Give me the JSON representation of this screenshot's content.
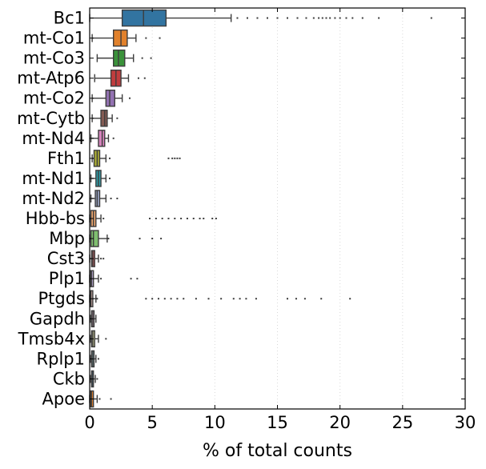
{
  "chart_data": {
    "type": "boxplot",
    "orientation": "horizontal",
    "xlabel": "% of total counts",
    "xlim": [
      0,
      30
    ],
    "xticks": [
      0,
      5,
      10,
      15,
      20,
      25,
      30
    ],
    "grid": "vertical-dotted",
    "legend": "none",
    "series": [
      {
        "name": "Bc1",
        "color": "#3274a1",
        "whisker_low": 0,
        "q1": 2.6,
        "median": 4.3,
        "q3": 6.1,
        "whisker_high": 11.3,
        "outliers": [
          11.8,
          12.6,
          13.4,
          14.2,
          15.0,
          15.8,
          16.6,
          17.3,
          17.9,
          18.3,
          18.6,
          18.9,
          19.2,
          19.6,
          20.0,
          20.5,
          21.0,
          21.8,
          23.1,
          27.3
        ]
      },
      {
        "name": "mt-Co1",
        "color": "#e1812c",
        "whisker_low": 0.2,
        "q1": 1.9,
        "median": 2.5,
        "q3": 3.0,
        "whisker_high": 3.7,
        "outliers": [
          4.5,
          5.6
        ]
      },
      {
        "name": "mt-Co3",
        "color": "#3a923a",
        "whisker_low": 0.6,
        "q1": 1.9,
        "median": 2.3,
        "q3": 2.8,
        "whisker_high": 3.5,
        "outliers": [
          4.2,
          4.9
        ]
      },
      {
        "name": "mt-Atp6",
        "color": "#c03d3e",
        "whisker_low": 0.4,
        "q1": 1.7,
        "median": 2.1,
        "q3": 2.5,
        "whisker_high": 3.1,
        "outliers": [
          3.9,
          4.4
        ]
      },
      {
        "name": "mt-Co2",
        "color": "#9372b2",
        "whisker_low": 0.2,
        "q1": 1.3,
        "median": 1.6,
        "q3": 2.0,
        "whisker_high": 2.6,
        "outliers": [
          3.2
        ]
      },
      {
        "name": "mt-Cytb",
        "color": "#845b53",
        "whisker_low": 0.2,
        "q1": 0.9,
        "median": 1.2,
        "q3": 1.4,
        "whisker_high": 1.8,
        "outliers": [
          2.2
        ]
      },
      {
        "name": "mt-Nd4",
        "color": "#d684bd",
        "whisker_low": 0.1,
        "q1": 0.7,
        "median": 1.0,
        "q3": 1.2,
        "whisker_high": 1.5,
        "outliers": [
          1.9
        ]
      },
      {
        "name": "Fth1",
        "color": "#a9aa35",
        "whisker_low": 0.2,
        "q1": 0.35,
        "median": 0.6,
        "q3": 0.8,
        "whisker_high": 1.3,
        "outliers": [
          1.6,
          6.3,
          6.6,
          6.8,
          7.0,
          7.2
        ]
      },
      {
        "name": "mt-Nd1",
        "color": "#2e9da8",
        "whisker_low": 0.1,
        "q1": 0.5,
        "median": 0.7,
        "q3": 0.9,
        "whisker_high": 1.3,
        "outliers": [
          1.6
        ]
      },
      {
        "name": "mt-Nd2",
        "color": "#9aa5c4",
        "whisker_low": 0.1,
        "q1": 0.45,
        "median": 0.6,
        "q3": 0.8,
        "whisker_high": 1.3,
        "outliers": [
          1.7,
          2.2
        ]
      },
      {
        "name": "Hbb-bs",
        "color": "#e9a46e",
        "whisker_low": 0,
        "q1": 0.1,
        "median": 0.3,
        "q3": 0.5,
        "whisker_high": 0.9,
        "outliers": [
          1.1,
          4.8,
          5.3,
          5.8,
          6.3,
          6.8,
          7.3,
          7.8,
          8.3,
          8.8,
          9.1,
          9.8,
          10.1
        ]
      },
      {
        "name": "Mbp",
        "color": "#7fbe6f",
        "whisker_low": 0,
        "q1": 0.1,
        "median": 0.3,
        "q3": 0.7,
        "whisker_high": 1.4,
        "outliers": [
          1.5,
          4.0,
          5.0,
          5.7
        ]
      },
      {
        "name": "Cst3",
        "color": "#b35d5d",
        "whisker_low": 0,
        "q1": 0.15,
        "median": 0.25,
        "q3": 0.4,
        "whisker_high": 0.7,
        "outliers": [
          0.9,
          1.1
        ]
      },
      {
        "name": "Plp1",
        "color": "#b3a2cc",
        "whisker_low": 0,
        "q1": 0.05,
        "median": 0.15,
        "q3": 0.3,
        "whisker_high": 0.7,
        "outliers": [
          0.9,
          3.3,
          3.8
        ]
      },
      {
        "name": "Ptgds",
        "color": "#c6a6a0",
        "whisker_low": 0,
        "q1": 0.02,
        "median": 0.1,
        "q3": 0.25,
        "whisker_high": 0.5,
        "outliers": [
          0.6,
          4.5,
          5.0,
          5.5,
          6.0,
          6.5,
          7.0,
          7.5,
          8.5,
          9.5,
          10.5,
          11.5,
          12.0,
          12.5,
          13.3,
          15.8,
          16.5,
          17.2,
          18.5,
          20.8
        ]
      },
      {
        "name": "Gapdh",
        "color": "#ebbbd8",
        "whisker_low": 0.05,
        "q1": 0.15,
        "median": 0.25,
        "q3": 0.35,
        "whisker_high": 0.5,
        "outliers": []
      },
      {
        "name": "Tmsb4x",
        "color": "#c8c898",
        "whisker_low": 0.05,
        "q1": 0.15,
        "median": 0.25,
        "q3": 0.4,
        "whisker_high": 0.7,
        "outliers": [
          1.3
        ]
      },
      {
        "name": "Rplp1",
        "color": "#8dc4cc",
        "whisker_low": 0.05,
        "q1": 0.15,
        "median": 0.25,
        "q3": 0.35,
        "whisker_high": 0.5,
        "outliers": [
          0.7
        ]
      },
      {
        "name": "Ckb",
        "color": "#3274a1",
        "whisker_low": 0.05,
        "q1": 0.15,
        "median": 0.25,
        "q3": 0.3,
        "whisker_high": 0.45,
        "outliers": [
          0.6
        ]
      },
      {
        "name": "Apoe",
        "color": "#e1812c",
        "whisker_low": 0,
        "q1": 0.05,
        "median": 0.15,
        "q3": 0.3,
        "whisker_high": 0.6,
        "outliers": [
          0.8,
          1.7
        ]
      }
    ]
  }
}
